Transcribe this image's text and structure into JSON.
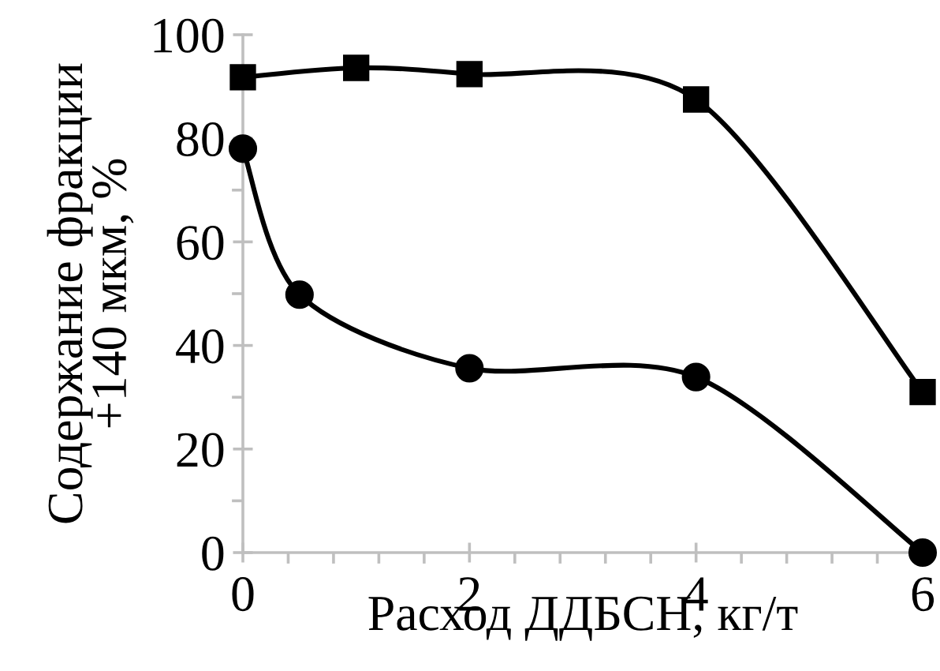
{
  "chart_data": {
    "type": "line",
    "xlabel": "Расход ДДБСН, кг/т",
    "ylabel": "Содержание фракции\n+140 мкм, %",
    "xlim": [
      0,
      6
    ],
    "xticks": [
      0,
      2,
      4,
      6
    ],
    "ylim": [
      0,
      100
    ],
    "yticks": [
      0,
      20,
      40,
      60,
      80,
      100
    ],
    "grid": false,
    "legend": false,
    "line_style": "solid",
    "series": [
      {
        "color": "#000000",
        "marker": "square",
        "x": [
          0,
          1,
          2,
          4,
          6
        ],
        "values": [
          91.8,
          93.6,
          92.4,
          87.5,
          31.0
        ]
      },
      {
        "color": "#000000",
        "marker": "circle",
        "x": [
          0,
          0.5,
          2,
          4,
          6
        ],
        "values": [
          78.0,
          49.8,
          35.6,
          33.9,
          0
        ]
      }
    ]
  }
}
